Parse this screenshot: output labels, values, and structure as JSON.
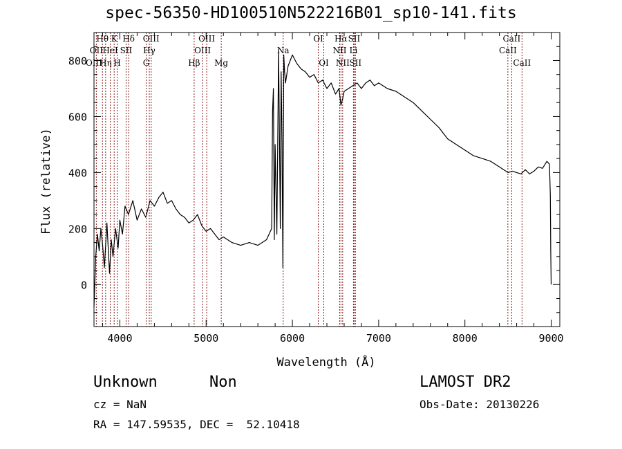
{
  "chart_data": {
    "type": "line",
    "title": "spec-56350-HD100510N522216B01_sp10-141.fits",
    "xlabel": "Wavelength (Å)",
    "ylabel": "Flux (relative)",
    "xlim": [
      3700,
      9100
    ],
    "ylim": [
      -150,
      900
    ],
    "x_ticks": [
      4000,
      5000,
      6000,
      7000,
      8000,
      9000
    ],
    "y_ticks": [
      0,
      200,
      400,
      600,
      800
    ],
    "grid": false,
    "series": [
      {
        "x": [
          3700,
          3720,
          3740,
          3760,
          3780,
          3800,
          3820,
          3850,
          3880,
          3900,
          3920,
          3950,
          3980,
          4000,
          4030,
          4060,
          4100,
          4150,
          4200,
          4250,
          4300,
          4350,
          4400,
          4450,
          4500,
          4550,
          4600,
          4650,
          4700,
          4750,
          4800,
          4850,
          4900,
          4950,
          5000,
          5050,
          5100,
          5150,
          5200,
          5300,
          5400,
          5500,
          5600,
          5700,
          5760,
          5770,
          5780,
          5790,
          5800,
          5820,
          5840,
          5860,
          5870,
          5880,
          5890,
          5900,
          5910,
          5920,
          5950,
          6000,
          6050,
          6100,
          6150,
          6200,
          6250,
          6300,
          6350,
          6400,
          6450,
          6500,
          6540,
          6563,
          6580,
          6600,
          6650,
          6700,
          6750,
          6800,
          6850,
          6900,
          6950,
          7000,
          7100,
          7200,
          7300,
          7400,
          7500,
          7600,
          7700,
          7800,
          7900,
          8000,
          8100,
          8200,
          8300,
          8400,
          8500,
          8550,
          8600,
          8650,
          8700,
          8750,
          8800,
          8850,
          8900,
          8950,
          8980,
          8990,
          8995,
          9000
        ],
        "y": [
          -80,
          100,
          180,
          120,
          200,
          140,
          60,
          220,
          40,
          160,
          100,
          200,
          130,
          230,
          180,
          280,
          250,
          300,
          230,
          270,
          240,
          300,
          280,
          310,
          330,
          290,
          300,
          270,
          250,
          240,
          220,
          230,
          250,
          210,
          190,
          200,
          180,
          160,
          170,
          150,
          140,
          150,
          140,
          160,
          200,
          620,
          700,
          160,
          500,
          180,
          840,
          200,
          760,
          500,
          60,
          820,
          760,
          720,
          780,
          820,
          790,
          770,
          760,
          740,
          750,
          720,
          730,
          700,
          720,
          680,
          700,
          640,
          660,
          690,
          700,
          710,
          720,
          700,
          720,
          730,
          710,
          720,
          700,
          690,
          670,
          650,
          620,
          590,
          560,
          520,
          500,
          480,
          460,
          450,
          440,
          420,
          400,
          405,
          400,
          395,
          410,
          395,
          405,
          420,
          415,
          440,
          430,
          320,
          120,
          0
        ]
      }
    ],
    "lines": [
      {
        "label": "Hθ",
        "x": 3798,
        "row": 0
      },
      {
        "label": "OII",
        "x": 3727,
        "row": 1
      },
      {
        "label": "OIII",
        "x": 3700,
        "row": 2
      },
      {
        "label": "K",
        "x": 3934,
        "row": 0
      },
      {
        "label": "HeI",
        "x": 3889,
        "row": 1
      },
      {
        "label": "Hη",
        "x": 3835,
        "row": 2
      },
      {
        "label": "Hδ",
        "x": 4102,
        "row": 0
      },
      {
        "label": "SII",
        "x": 4072,
        "row": 1
      },
      {
        "label": "H",
        "x": 3969,
        "row": 2
      },
      {
        "label": "OIII",
        "x": 4363,
        "row": 0
      },
      {
        "label": "Hγ",
        "x": 4341,
        "row": 1
      },
      {
        "label": "G",
        "x": 4305,
        "row": 2
      },
      {
        "label": "OIII",
        "x": 5007,
        "row": 0
      },
      {
        "label": "OIII",
        "x": 4959,
        "row": 1
      },
      {
        "label": "Hβ",
        "x": 4861,
        "row": 2
      },
      {
        "label": "Mg",
        "x": 5175,
        "row": 2
      },
      {
        "label": "Na",
        "x": 5893,
        "row": 1
      },
      {
        "label": "OI",
        "x": 6300,
        "row": 0
      },
      {
        "label": "OI",
        "x": 6364,
        "row": 2
      },
      {
        "label": "Hα",
        "x": 6563,
        "row": 0
      },
      {
        "label": "NII",
        "x": 6548,
        "row": 1
      },
      {
        "label": "NII",
        "x": 6583,
        "row": 2
      },
      {
        "label": "SII",
        "x": 6716,
        "row": 0
      },
      {
        "label": "Li",
        "x": 6708,
        "row": 1
      },
      {
        "label": "SII",
        "x": 6731,
        "row": 2
      },
      {
        "label": "CaII",
        "x": 8542,
        "row": 0
      },
      {
        "label": "CaII",
        "x": 8498,
        "row": 1
      },
      {
        "label": "CaII",
        "x": 8662,
        "row": 2
      }
    ]
  },
  "info": {
    "class": "Unknown",
    "subclass": "Non",
    "survey": "LAMOST DR2",
    "cz": "cz = NaN",
    "obs_date": "Obs-Date: 20130226",
    "coords": "RA = 147.59535, DEC =  52.10418"
  },
  "colors": {
    "spectrum": "#000000",
    "line_marker": "#8b1a1a"
  }
}
